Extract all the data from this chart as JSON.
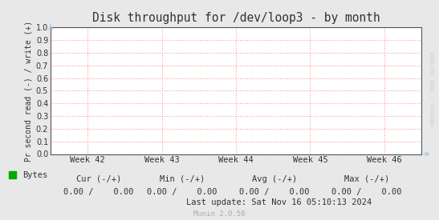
{
  "title": "Disk throughput for /dev/loop3 - by month",
  "ylabel": "Pr second read (-) / write (+)",
  "bg_color": "#e8e8e8",
  "plot_bg_color": "#ffffff",
  "grid_color": "#ff9999",
  "axis_color": "#555555",
  "title_color": "#333333",
  "tick_label_color": "#333333",
  "watermark_color": "#cccccc",
  "footer_color": "#333333",
  "munin_color": "#aaaaaa",
  "ylim": [
    0.0,
    1.0
  ],
  "yticks": [
    0.0,
    0.1,
    0.2,
    0.3,
    0.4,
    0.5,
    0.6,
    0.7,
    0.8,
    0.9,
    1.0
  ],
  "xtick_labels": [
    "Week 42",
    "Week 43",
    "Week 44",
    "Week 45",
    "Week 46"
  ],
  "xtick_positions": [
    0.1,
    0.3,
    0.5,
    0.7,
    0.9
  ],
  "watermark": "RRDTOOL / TOBI OETIKER",
  "legend_label": "Bytes",
  "legend_color": "#00aa00",
  "footer_cur": "Cur (-/+)",
  "footer_min": "Min (-/+)",
  "footer_avg": "Avg (-/+)",
  "footer_max": "Max (-/+)",
  "last_update": "Last update: Sat Nov 16 05:10:13 2024",
  "munin_version": "Munin 2.0.56",
  "arrow_color": "#aaccee"
}
